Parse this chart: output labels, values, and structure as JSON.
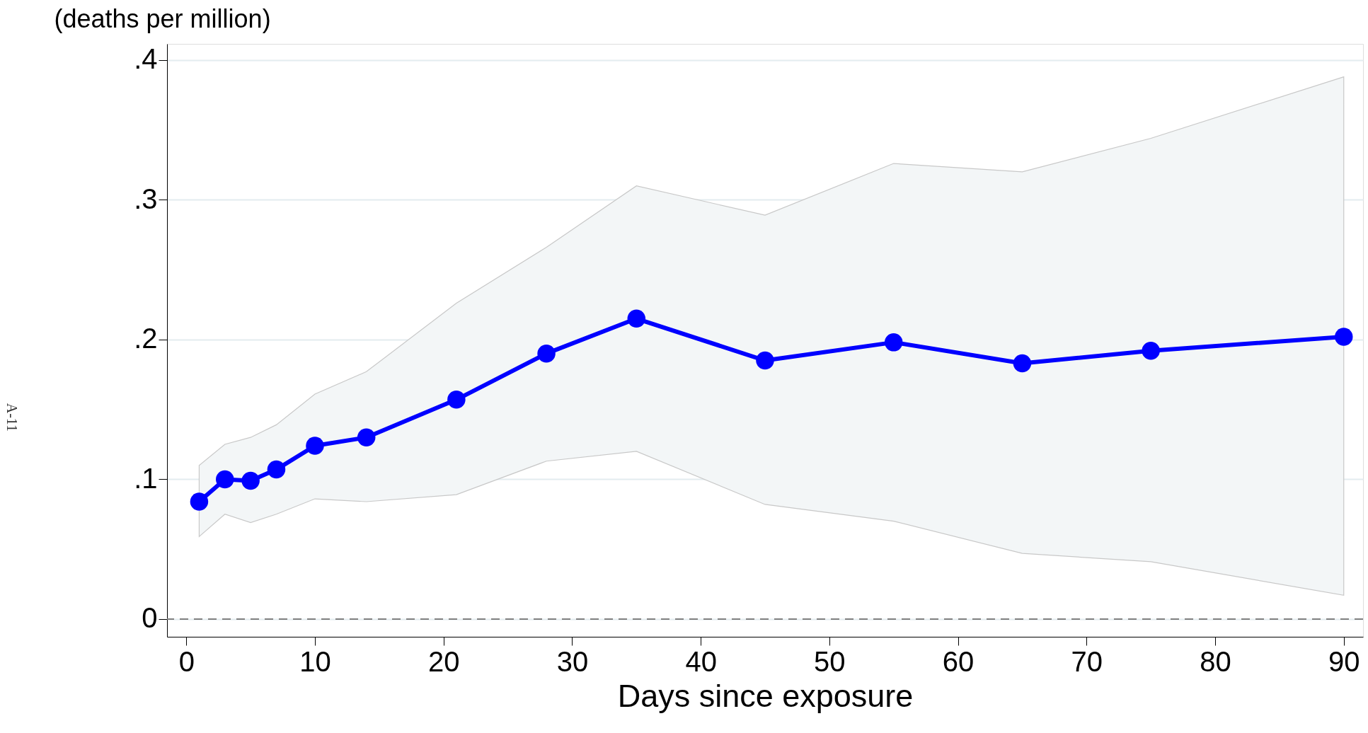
{
  "chart_data": {
    "type": "line",
    "ylabel": "(deaths per million)",
    "xlabel": "Days since exposure",
    "x": [
      1,
      3,
      5,
      7,
      10,
      14,
      21,
      28,
      35,
      45,
      55,
      65,
      75,
      90
    ],
    "series": [
      {
        "color": "#0000ff",
        "values": [
          0.084,
          0.1,
          0.099,
          0.107,
          0.124,
          0.13,
          0.157,
          0.19,
          0.215,
          0.185,
          0.198,
          0.183,
          0.192,
          0.202
        ],
        "lower": [
          0.059,
          0.075,
          0.069,
          0.075,
          0.086,
          0.084,
          0.089,
          0.113,
          0.12,
          0.082,
          0.07,
          0.047,
          0.041,
          0.017
        ],
        "upper": [
          0.11,
          0.125,
          0.13,
          0.139,
          0.161,
          0.177,
          0.226,
          0.266,
          0.31,
          0.289,
          0.326,
          0.32,
          0.344,
          0.388
        ]
      }
    ],
    "marker": "circle",
    "line_style": "solid",
    "grid": "y",
    "xlim": [
      -1.5,
      91.5
    ],
    "xticks": [
      0,
      10,
      20,
      30,
      40,
      50,
      60,
      70,
      80,
      90
    ],
    "ylim": [
      -0.0127,
      0.4116
    ],
    "yticks": [
      0,
      {
        "value": 0.1,
        "label": ".1"
      },
      {
        "value": 0.2,
        "label": ".2"
      },
      {
        "value": 0.3,
        "label": ".3"
      },
      {
        "value": 0.4,
        "label": ".4"
      }
    ],
    "ref_lines": [
      {
        "axis": "y",
        "value": 0,
        "color": "#808080",
        "line_style": "dashed"
      }
    ],
    "annotations": [
      "A-11"
    ]
  }
}
